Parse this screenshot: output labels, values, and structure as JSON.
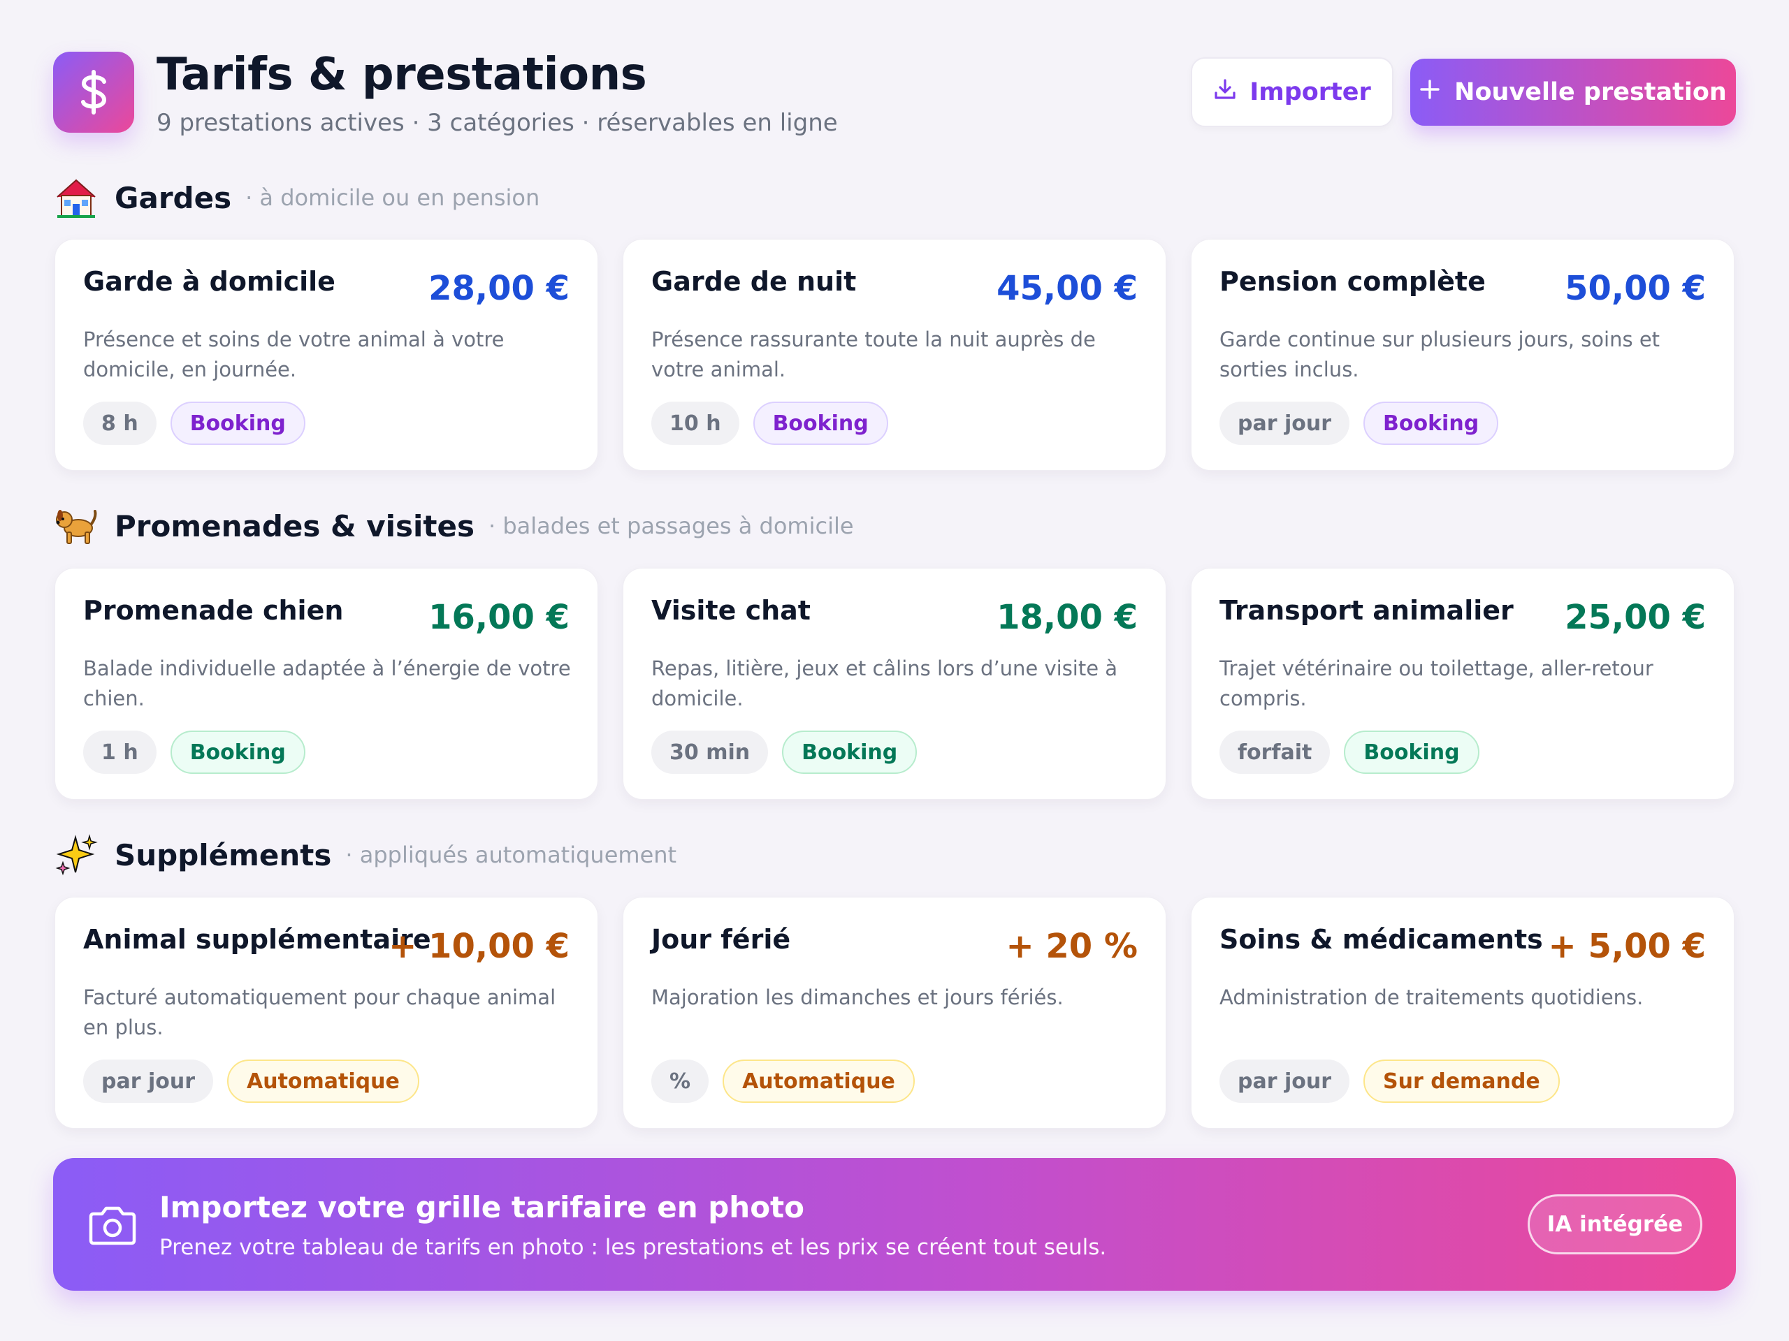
{
  "header": {
    "title": "Tarifs & prestations",
    "subtitle": "9 prestations actives · 3 catégories · réservables en ligne",
    "import_label": "Importer",
    "new_label": "Nouvelle prestation",
    "logo_icon": "dollar-icon"
  },
  "sections": [
    {
      "title": "Gardes",
      "subtitle": "· à domicile ou en pension",
      "icon": "house-icon",
      "cards": [
        {
          "title": "Garde à domicile",
          "price": "28,00 €",
          "description": "Présence et soins de votre animal à votre domicile, en journée.",
          "duration": "8 h",
          "mode": "Booking"
        },
        {
          "title": "Garde de nuit",
          "price": "45,00 €",
          "description": "Présence rassurante toute la nuit auprès de votre animal.",
          "duration": "10 h",
          "mode": "Booking"
        },
        {
          "title": "Pension complète",
          "price": "50,00 €",
          "description": "Garde continue sur plusieurs jours, soins et sorties inclus.",
          "duration": "par jour",
          "mode": "Booking"
        }
      ]
    },
    {
      "title": "Promenades & visites",
      "subtitle": "· balades et passages à domicile",
      "icon": "dog-icon",
      "cards": [
        {
          "title": "Promenade chien",
          "price": "16,00 €",
          "description": "Balade individuelle adaptée à l’énergie de votre chien.",
          "duration": "1 h",
          "mode": "Booking"
        },
        {
          "title": "Visite chat",
          "price": "18,00 €",
          "description": "Repas, litière, jeux et câlins lors d’une visite à domicile.",
          "duration": "30 min",
          "mode": "Booking"
        },
        {
          "title": "Transport animalier",
          "price": "25,00 €",
          "description": "Trajet vétérinaire ou toilettage, aller-retour compris.",
          "duration": "forfait",
          "mode": "Booking"
        }
      ]
    },
    {
      "title": "Suppléments",
      "subtitle": "· appliqués automatiquement",
      "icon": "sparkles-icon",
      "cards": [
        {
          "title": "Animal supplémentaire",
          "price": "+ 10,00 €",
          "description": "Facturé automatiquement pour chaque animal en plus.",
          "duration": "par jour",
          "mode": "Automatique"
        },
        {
          "title": "Jour férié",
          "price": "+ 20 %",
          "description": "Majoration les dimanches et jours fériés.",
          "duration": "%",
          "mode": "Automatique"
        },
        {
          "title": "Soins & médicaments",
          "price": "+ 5,00 €",
          "description": "Administration de traitements quotidiens.",
          "duration": "par jour",
          "mode": "Sur demande"
        }
      ]
    }
  ],
  "banner": {
    "title": "Importez votre grille tarifaire en photo",
    "subtitle": "Prenez votre tableau de tarifs en photo : les prestations et les prix se créent tout seuls.",
    "badge": "IA intégrée",
    "icon": "camera-icon"
  },
  "colors": {
    "accent_purple": "#8b5cf6",
    "accent_pink": "#ec4899",
    "price_blue": "#1d4ed8",
    "price_green": "#047857",
    "price_orange": "#b45309"
  }
}
